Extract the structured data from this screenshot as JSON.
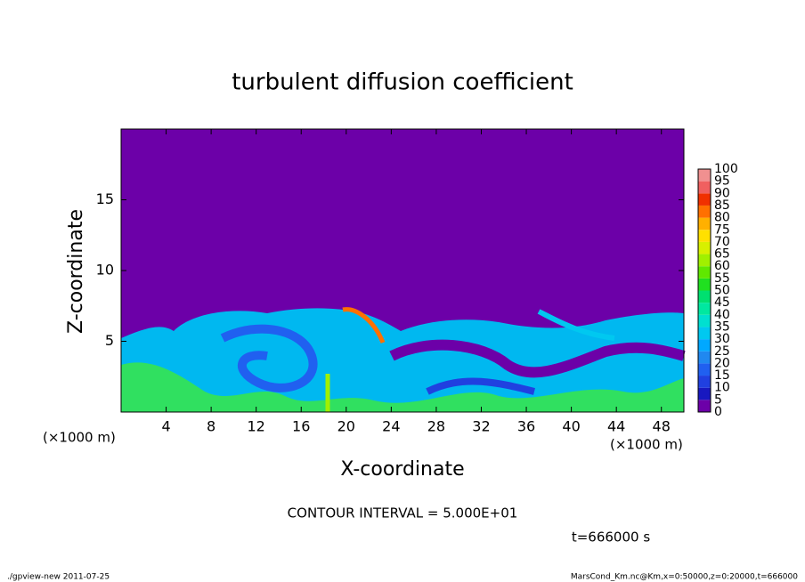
{
  "chart_data": {
    "type": "heatmap",
    "title": "turbulent diffusion coefficient",
    "x_label": "X-coordinate",
    "y_label": "Z-coordinate",
    "x_unit": "(×1000 m)",
    "xlim": [
      0,
      50
    ],
    "xticks": [
      4,
      8,
      12,
      16,
      20,
      24,
      28,
      32,
      36,
      40,
      44,
      48
    ],
    "ylim": [
      0,
      20
    ],
    "yticks": [
      5,
      10,
      15
    ],
    "colorbar": {
      "levels": [
        0,
        5,
        10,
        15,
        20,
        25,
        30,
        35,
        40,
        45,
        50,
        55,
        60,
        65,
        70,
        75,
        80,
        85,
        90,
        95,
        100
      ],
      "colors": [
        "#6c00a8",
        "#1818c0",
        "#2040e0",
        "#2060f0",
        "#2088f0",
        "#00a8ff",
        "#00c8f0",
        "#00e0d0",
        "#00e8a0",
        "#00e070",
        "#20e020",
        "#60e800",
        "#a0f000",
        "#d8f000",
        "#ffe000",
        "#ffb000",
        "#ff7000",
        "#f03000",
        "#f06060",
        "#f09090"
      ]
    },
    "contour_note": "CONTOUR INTERVAL = 5.000E+01",
    "time_label": "t=666000 s",
    "footer_left": "./gpview-new   2011-07-25",
    "footer_right": "MarsCond_Km.nc@Km,x=0:50000,z=0:20000,t=666000"
  }
}
